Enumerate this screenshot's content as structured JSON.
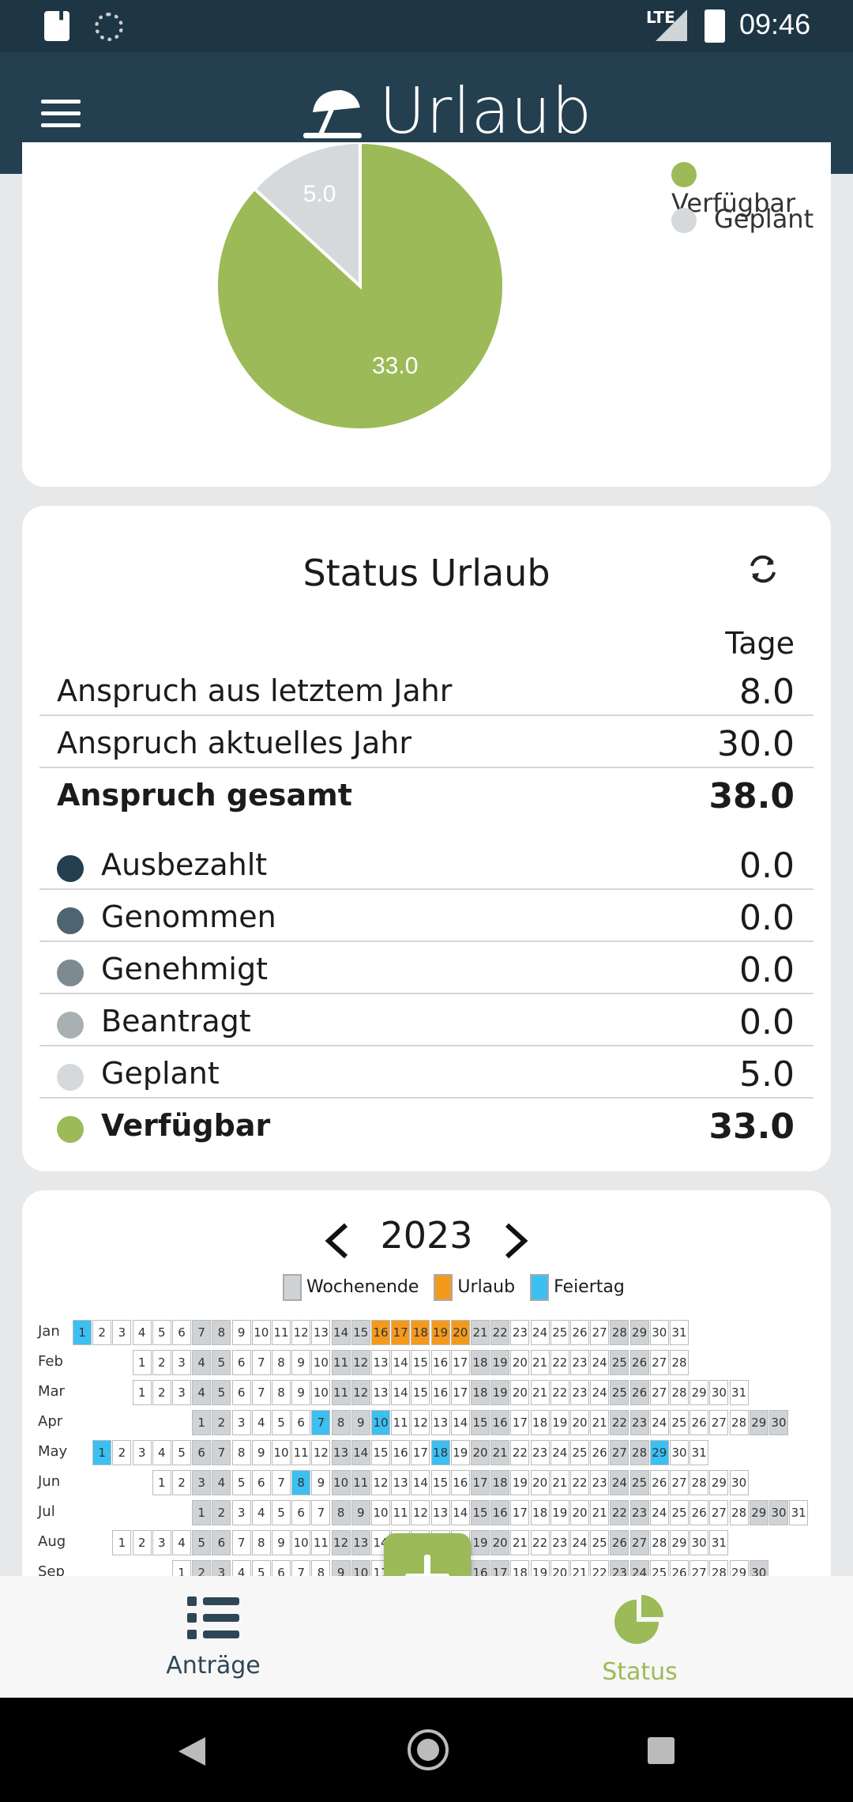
{
  "status_bar": {
    "network": "LTE",
    "time": "09:46"
  },
  "app_bar": {
    "title": "Urlaub"
  },
  "chart_data": {
    "type": "pie",
    "values": [
      {
        "name": "Verfügbar",
        "value": 33.0,
        "color": "#9cba57"
      },
      {
        "name": "Geplant",
        "value": 5.0,
        "color": "#d6d9db"
      }
    ],
    "value_labels": [
      "33.0",
      "5.0"
    ]
  },
  "legend": [
    {
      "label": "Verfügbar",
      "color": "#9cba57"
    },
    {
      "label": "Geplant",
      "color": "#d6d9db"
    }
  ],
  "status": {
    "title": "Status Urlaub",
    "column_header": "Tage",
    "rows": [
      {
        "label": "Anspruch aus letztem Jahr",
        "value": "8.0"
      },
      {
        "label": "Anspruch aktuelles Jahr",
        "value": "30.0"
      },
      {
        "label": "Anspruch gesamt",
        "value": "38.0"
      },
      {
        "label": "Ausbezahlt",
        "value": "0.0",
        "color": "#243f4f"
      },
      {
        "label": "Genommen",
        "value": "0.0",
        "color": "#4e6470"
      },
      {
        "label": "Genehmigt",
        "value": "0.0",
        "color": "#7d8a92"
      },
      {
        "label": "Beantragt",
        "value": "0.0",
        "color": "#a9b0b4"
      },
      {
        "label": "Geplant",
        "value": "5.0",
        "color": "#d6d9db"
      },
      {
        "label": "Verfügbar",
        "value": "33.0",
        "color": "#9cba57"
      }
    ]
  },
  "calendar": {
    "year": "2023",
    "legend": [
      {
        "label": "Wochenende",
        "color": "#d0d3d5"
      },
      {
        "label": "Urlaub",
        "color": "#f39a1d"
      },
      {
        "label": "Feiertag",
        "color": "#3cc0f2"
      }
    ],
    "months": [
      {
        "name": "Jan",
        "offset": 0,
        "days": 31,
        "urlaub": [
          16,
          17,
          18,
          19,
          20
        ],
        "feiertag": [
          1
        ]
      },
      {
        "name": "Feb",
        "offset": 3,
        "days": 28,
        "urlaub": [],
        "feiertag": []
      },
      {
        "name": "Mar",
        "offset": 3,
        "days": 31,
        "urlaub": [],
        "feiertag": []
      },
      {
        "name": "Apr",
        "offset": 6,
        "days": 30,
        "urlaub": [],
        "feiertag": [
          7,
          10
        ]
      },
      {
        "name": "May",
        "offset": 1,
        "days": 31,
        "urlaub": [],
        "feiertag": [
          1,
          18,
          29
        ]
      },
      {
        "name": "Jun",
        "offset": 4,
        "days": 30,
        "urlaub": [],
        "feiertag": [
          8
        ]
      },
      {
        "name": "Jul",
        "offset": 6,
        "days": 31,
        "urlaub": [],
        "feiertag": []
      },
      {
        "name": "Aug",
        "offset": 2,
        "days": 31,
        "urlaub": [],
        "feiertag": []
      },
      {
        "name": "Sep",
        "offset": 5,
        "days": 30,
        "urlaub": [],
        "feiertag": []
      }
    ]
  },
  "bottom_nav": {
    "antraege": "Anträge",
    "status": "Status"
  }
}
